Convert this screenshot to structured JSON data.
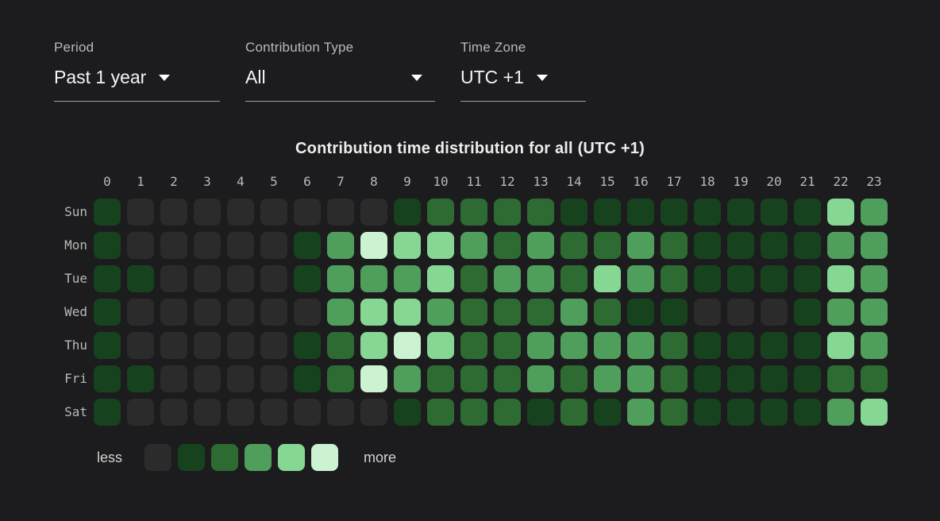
{
  "filters": {
    "period": {
      "label": "Period",
      "value": "Past 1 year"
    },
    "contribution_type": {
      "label": "Contribution Type",
      "value": "All"
    },
    "time_zone": {
      "label": "Time Zone",
      "value": "UTC +1"
    }
  },
  "chart_data": {
    "type": "heatmap",
    "title": "Contribution time distribution for all (UTC +1)",
    "x_labels": [
      "0",
      "1",
      "2",
      "3",
      "4",
      "5",
      "6",
      "7",
      "8",
      "9",
      "10",
      "11",
      "12",
      "13",
      "14",
      "15",
      "16",
      "17",
      "18",
      "19",
      "20",
      "21",
      "22",
      "23"
    ],
    "y_labels": [
      "Sun",
      "Mon",
      "Tue",
      "Wed",
      "Thu",
      "Fri",
      "Sat"
    ],
    "intensity_scale_note": "cell values are intensity levels 0-5 matching the legend swatches, less to more",
    "level_colors": [
      "#2b2b2b",
      "#17421e",
      "#2d6b32",
      "#4f9e5b",
      "#85d793",
      "#ccf3d1"
    ],
    "values": [
      [
        1,
        0,
        0,
        0,
        0,
        0,
        0,
        0,
        0,
        1,
        2,
        2,
        2,
        2,
        1,
        1,
        1,
        1,
        1,
        1,
        1,
        1,
        4,
        3
      ],
      [
        1,
        0,
        0,
        0,
        0,
        0,
        1,
        3,
        5,
        4,
        4,
        3,
        2,
        3,
        2,
        2,
        3,
        2,
        1,
        1,
        1,
        1,
        3,
        3
      ],
      [
        1,
        1,
        0,
        0,
        0,
        0,
        1,
        3,
        3,
        3,
        4,
        2,
        3,
        3,
        2,
        4,
        3,
        2,
        1,
        1,
        1,
        1,
        4,
        3
      ],
      [
        1,
        0,
        0,
        0,
        0,
        0,
        0,
        3,
        4,
        4,
        3,
        2,
        2,
        2,
        3,
        2,
        1,
        1,
        0,
        0,
        0,
        1,
        3,
        3
      ],
      [
        1,
        0,
        0,
        0,
        0,
        0,
        1,
        2,
        4,
        5,
        4,
        2,
        2,
        3,
        3,
        3,
        3,
        2,
        1,
        1,
        1,
        1,
        4,
        3
      ],
      [
        1,
        1,
        0,
        0,
        0,
        0,
        1,
        2,
        5,
        3,
        2,
        2,
        2,
        3,
        2,
        3,
        3,
        2,
        1,
        1,
        1,
        1,
        2,
        2
      ],
      [
        1,
        0,
        0,
        0,
        0,
        0,
        0,
        0,
        0,
        1,
        2,
        2,
        2,
        1,
        2,
        1,
        3,
        2,
        1,
        1,
        1,
        1,
        3,
        4
      ]
    ],
    "legend": {
      "less": "less",
      "more": "more",
      "position": "bottom-left"
    },
    "grid": "off",
    "background": "#1c1c1e"
  }
}
